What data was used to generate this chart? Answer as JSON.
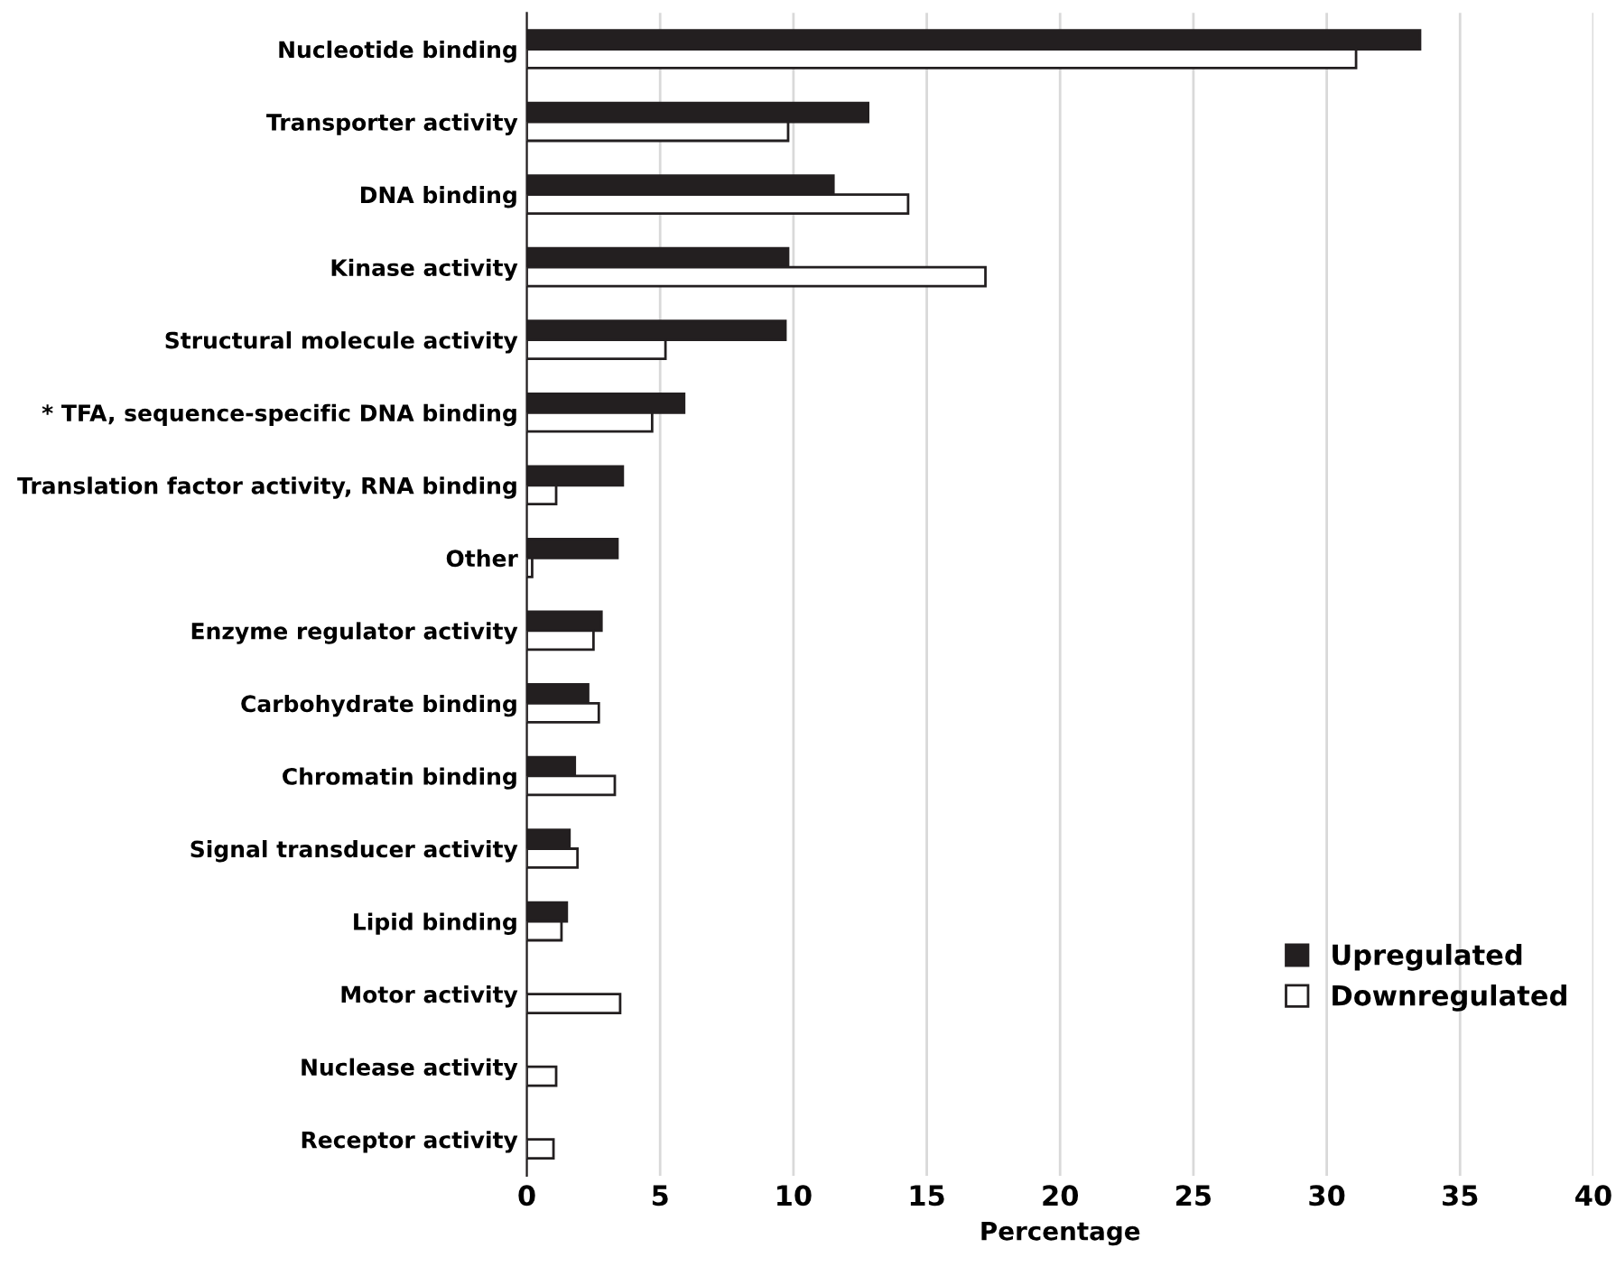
{
  "chart_data": {
    "type": "bar",
    "orientation": "horizontal",
    "xlabel": "Percentage",
    "categories": [
      "Nucleotide binding",
      "Transporter activity",
      "DNA binding",
      "Kinase activity",
      "Structural molecule activity",
      "* TFA, sequence-specific DNA binding",
      "Translation factor activity, RNA binding",
      "Other",
      "Enzyme regulator activity",
      "Carbohydrate binding",
      "Chromatin binding",
      "Signal transducer activity",
      "Lipid binding",
      "Motor activity",
      "Nuclease activity",
      "Receptor activity"
    ],
    "series": [
      {
        "name": "Upregulated",
        "color": "#231f20",
        "values": [
          33.5,
          12.8,
          11.5,
          9.8,
          9.7,
          5.9,
          3.6,
          3.4,
          2.8,
          2.3,
          1.8,
          1.6,
          1.5,
          null,
          null,
          null
        ]
      },
      {
        "name": "Downregulated",
        "color": "#ffffff",
        "values": [
          31.1,
          9.8,
          14.3,
          17.2,
          5.2,
          4.7,
          1.1,
          0.2,
          2.5,
          2.7,
          3.3,
          1.9,
          1.3,
          3.5,
          1.1,
          1.0
        ]
      }
    ],
    "xlim": [
      0,
      40
    ],
    "xticks": [
      0,
      5,
      10,
      15,
      20,
      25,
      30,
      35,
      40
    ],
    "grid": "x",
    "legend": "lower right"
  }
}
